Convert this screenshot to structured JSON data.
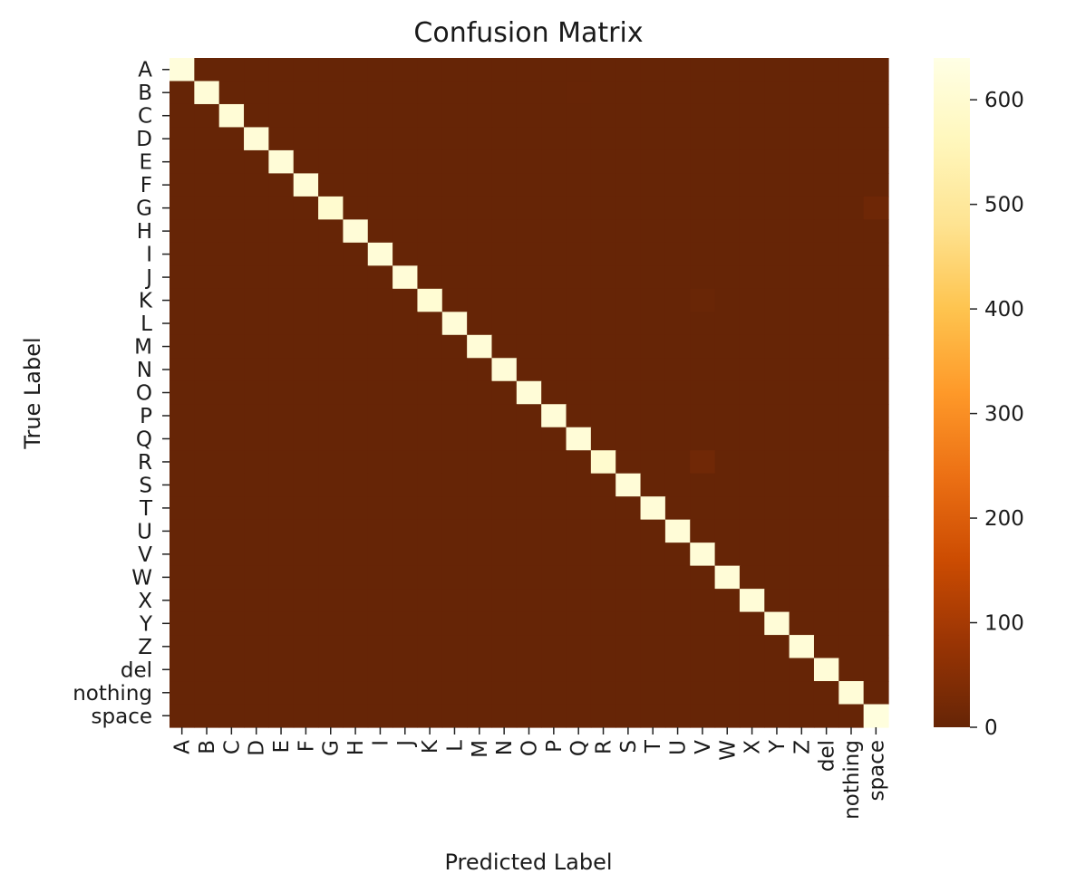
{
  "chart_data": {
    "type": "heatmap",
    "title": "Confusion Matrix",
    "xlabel": "Predicted Label",
    "ylabel": "True Label",
    "labels": [
      "A",
      "B",
      "C",
      "D",
      "E",
      "F",
      "G",
      "H",
      "I",
      "J",
      "K",
      "L",
      "M",
      "N",
      "O",
      "P",
      "Q",
      "R",
      "S",
      "T",
      "U",
      "V",
      "W",
      "X",
      "Y",
      "Z",
      "del",
      "nothing",
      "space"
    ],
    "diagonal": [
      620,
      612,
      610,
      612,
      612,
      610,
      598,
      612,
      612,
      612,
      605,
      612,
      612,
      612,
      612,
      612,
      612,
      595,
      612,
      612,
      612,
      612,
      612,
      612,
      612,
      612,
      612,
      612,
      625
    ],
    "off_diagonal": [
      {
        "true": "G",
        "pred": "space",
        "value": 12
      },
      {
        "true": "K",
        "pred": "V",
        "value": 5
      },
      {
        "true": "R",
        "pred": "V",
        "value": 15
      },
      {
        "true": "B",
        "pred": "Q",
        "value": 2
      }
    ],
    "colorbar": {
      "min": 0,
      "max": 640,
      "ticks": [
        0,
        100,
        200,
        300,
        400,
        500,
        600
      ],
      "colormap": "YlOrBr_r",
      "stops": [
        "#662506",
        "#993404",
        "#cc4c02",
        "#ec7014",
        "#fe9929",
        "#fec44f",
        "#fee391",
        "#fff7bc",
        "#ffffe5"
      ]
    }
  }
}
